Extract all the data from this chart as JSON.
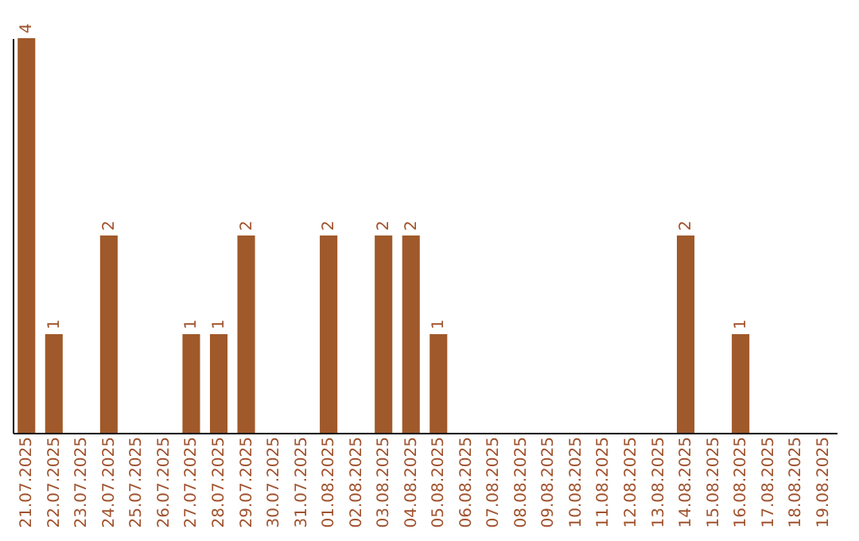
{
  "chart_data": {
    "type": "bar",
    "categories": [
      "21.07.2025",
      "22.07.2025",
      "23.07.2025",
      "24.07.2025",
      "25.07.2025",
      "26.07.2025",
      "27.07.2025",
      "28.07.2025",
      "29.07.2025",
      "30.07.2025",
      "31.07.2025",
      "01.08.2025",
      "02.08.2025",
      "03.08.2025",
      "04.08.2025",
      "05.08.2025",
      "06.08.2025",
      "07.08.2025",
      "08.08.2025",
      "09.08.2025",
      "10.08.2025",
      "11.08.2025",
      "12.08.2025",
      "13.08.2025",
      "14.08.2025",
      "15.08.2025",
      "16.08.2025",
      "17.08.2025",
      "18.08.2025",
      "19.08.2025"
    ],
    "values": [
      4,
      1,
      0,
      2,
      0,
      0,
      1,
      1,
      2,
      0,
      0,
      2,
      0,
      2,
      2,
      1,
      0,
      0,
      0,
      0,
      0,
      0,
      0,
      0,
      2,
      0,
      1,
      0,
      0,
      0
    ],
    "value_labels": [
      "4",
      "1",
      null,
      "2",
      null,
      null,
      "1",
      "1",
      "2",
      null,
      null,
      "2",
      null,
      "2",
      "2",
      "1",
      null,
      null,
      null,
      null,
      null,
      null,
      null,
      null,
      "2",
      null,
      "1",
      null,
      null,
      null
    ],
    "color": "#a0592a",
    "tick_labels": "x"
  }
}
